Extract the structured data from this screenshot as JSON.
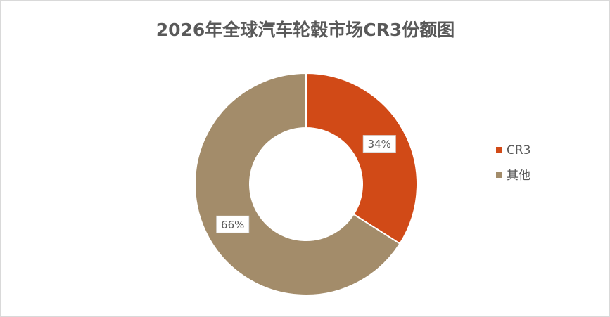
{
  "chart_data": {
    "type": "donut",
    "title": "2026年全球汽车轮毂市场CR3份额图",
    "categories": [
      "CR3",
      "其他"
    ],
    "values": [
      34,
      66
    ],
    "value_labels": [
      "34%",
      "66%"
    ],
    "colors": [
      "#d14a17",
      "#a38c6a"
    ],
    "legend": "right"
  }
}
